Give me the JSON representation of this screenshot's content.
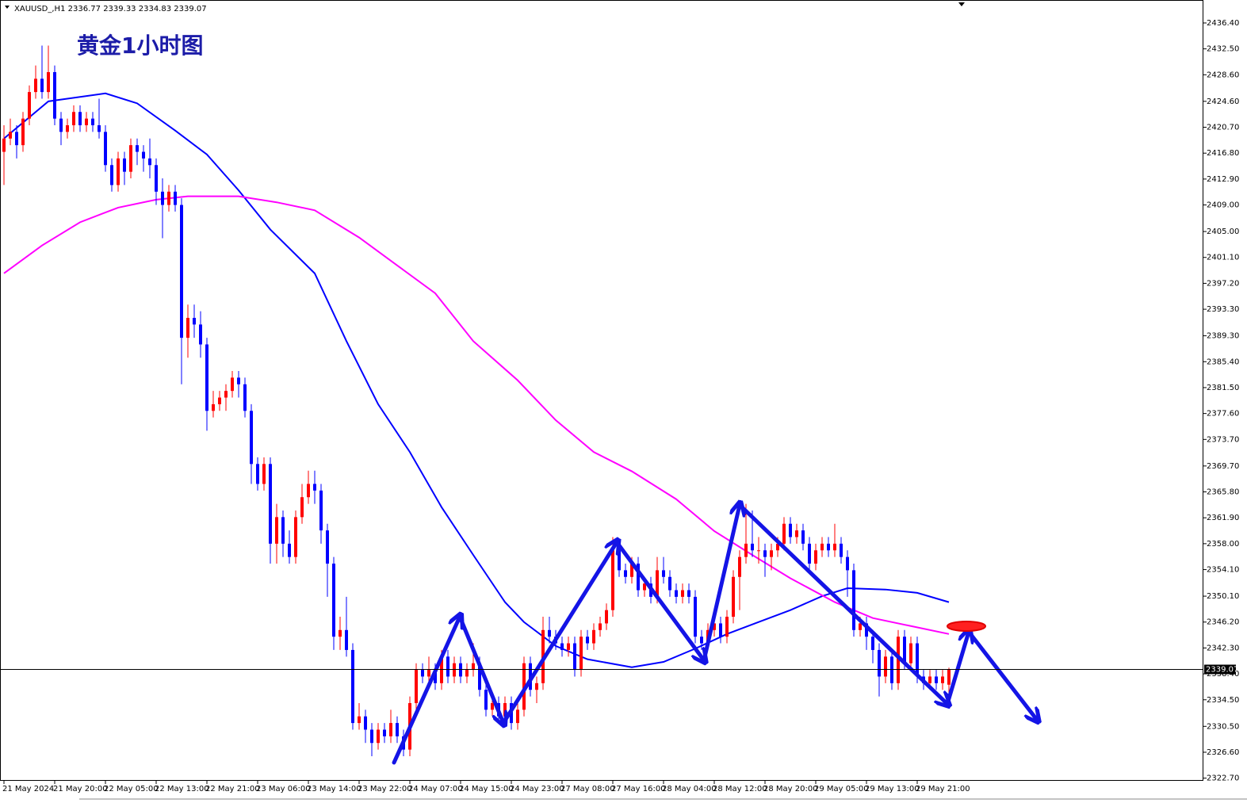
{
  "chart_data": {
    "type": "candlestick",
    "symbol": "XAUUSD_,H1",
    "title": "黄金1小时图",
    "bull_color": "#ff0000",
    "bear_color": "#0000ff",
    "price_line_color": "#000000",
    "ylim": [
      2322.3,
      2439.5
    ],
    "yticks": [
      {
        "value": 2436.4,
        "label": "2436.40"
      },
      {
        "value": 2432.5,
        "label": "2432.50"
      },
      {
        "value": 2428.6,
        "label": "2428.60"
      },
      {
        "value": 2424.6,
        "label": "2424.60"
      },
      {
        "value": 2420.7,
        "label": "2420.70"
      },
      {
        "value": 2416.8,
        "label": "2416.80"
      },
      {
        "value": 2412.9,
        "label": "2412.90"
      },
      {
        "value": 2409.0,
        "label": "2409.00"
      },
      {
        "value": 2405.0,
        "label": "2405.00"
      },
      {
        "value": 2401.1,
        "label": "2401.10"
      },
      {
        "value": 2397.2,
        "label": "2397.20"
      },
      {
        "value": 2393.3,
        "label": "2393.30"
      },
      {
        "value": 2389.3,
        "label": "2389.30"
      },
      {
        "value": 2385.4,
        "label": "2385.40"
      },
      {
        "value": 2381.5,
        "label": "2381.50"
      },
      {
        "value": 2377.6,
        "label": "2377.60"
      },
      {
        "value": 2373.7,
        "label": "2373.70"
      },
      {
        "value": 2369.7,
        "label": "2369.70"
      },
      {
        "value": 2365.8,
        "label": "2365.80"
      },
      {
        "value": 2361.9,
        "label": "2361.90"
      },
      {
        "value": 2358.0,
        "label": "2358.00"
      },
      {
        "value": 2354.1,
        "label": "2354.10"
      },
      {
        "value": 2350.1,
        "label": "2350.10"
      },
      {
        "value": 2346.2,
        "label": "2346.20"
      },
      {
        "value": 2342.3,
        "label": "2342.30"
      },
      {
        "value": 2338.4,
        "label": "2338.40"
      },
      {
        "value": 2334.5,
        "label": "2334.50"
      },
      {
        "value": 2330.5,
        "label": "2330.50"
      },
      {
        "value": 2326.6,
        "label": "2326.60"
      },
      {
        "value": 2322.7,
        "label": "2322.70"
      }
    ],
    "categories": [
      "21 May 2024",
      null,
      null,
      null,
      null,
      null,
      null,
      null,
      "21 May 20:00",
      null,
      null,
      null,
      null,
      null,
      null,
      null,
      "22 May 05:00",
      null,
      null,
      null,
      null,
      null,
      null,
      null,
      "22 May 13:00",
      null,
      null,
      null,
      null,
      null,
      null,
      null,
      "22 May 21:00",
      null,
      null,
      null,
      null,
      null,
      null,
      null,
      "23 May 06:00",
      null,
      null,
      null,
      null,
      null,
      null,
      null,
      "23 May 14:00",
      null,
      null,
      null,
      null,
      null,
      null,
      null,
      "23 May 22:00",
      null,
      null,
      null,
      null,
      null,
      null,
      null,
      "24 May 07:00",
      null,
      null,
      null,
      null,
      null,
      null,
      null,
      "24 May 15:00",
      null,
      null,
      null,
      null,
      null,
      null,
      null,
      "24 May 23:00",
      null,
      null,
      null,
      null,
      null,
      null,
      null,
      "27 May 08:00",
      null,
      null,
      null,
      null,
      null,
      null,
      null,
      "27 May 16:00",
      null,
      null,
      null,
      null,
      null,
      null,
      null,
      "28 May 04:00",
      null,
      null,
      null,
      null,
      null,
      null,
      null,
      "28 May 12:00",
      null,
      null,
      null,
      null,
      null,
      null,
      null,
      "28 May 20:00",
      null,
      null,
      null,
      null,
      null,
      null,
      null,
      "29 May 05:00",
      null,
      null,
      null,
      null,
      null,
      null,
      null,
      "29 May 13:00",
      null,
      null,
      null,
      null,
      null,
      null,
      null,
      "29 May 21:00",
      null,
      null,
      null,
      null,
      null
    ],
    "ohlc": [
      [
        2417,
        2421,
        2412,
        2419
      ],
      [
        2419,
        2422,
        2418,
        2420
      ],
      [
        2420,
        2421,
        2416,
        2418
      ],
      [
        2418,
        2423,
        2417,
        2422
      ],
      [
        2422,
        2427,
        2421,
        2426
      ],
      [
        2426,
        2430,
        2425,
        2428
      ],
      [
        2428,
        2433,
        2425,
        2426
      ],
      [
        2426,
        2433,
        2425,
        2429
      ],
      [
        2429,
        2430,
        2421,
        2422
      ],
      [
        2422,
        2423,
        2418,
        2420
      ],
      [
        2420,
        2422,
        2419,
        2421
      ],
      [
        2421,
        2424,
        2420,
        2423
      ],
      [
        2423,
        2424,
        2420,
        2421
      ],
      [
        2421,
        2423,
        2420,
        2422
      ],
      [
        2422,
        2423,
        2420,
        2421
      ],
      [
        2421,
        2425,
        2419,
        2420
      ],
      [
        2420,
        2421,
        2414,
        2415
      ],
      [
        2415,
        2416,
        2411,
        2412
      ],
      [
        2412,
        2417,
        2411,
        2416
      ],
      [
        2416,
        2417,
        2412,
        2414
      ],
      [
        2414,
        2419,
        2413,
        2418
      ],
      [
        2418,
        2419,
        2415,
        2417
      ],
      [
        2417,
        2418,
        2414,
        2416
      ],
      [
        2416,
        2419,
        2413,
        2415
      ],
      [
        2415,
        2416,
        2409,
        2411
      ],
      [
        2411,
        2413,
        2404,
        2409
      ],
      [
        2409,
        2412,
        2408,
        2411
      ],
      [
        2411,
        2412,
        2408,
        2409
      ],
      [
        2409,
        2410,
        2382,
        2389
      ],
      [
        2389,
        2394,
        2386,
        2392
      ],
      [
        2392,
        2394,
        2389,
        2391
      ],
      [
        2391,
        2393,
        2386,
        2388
      ],
      [
        2388,
        2389,
        2375,
        2378
      ],
      [
        2378,
        2381,
        2377,
        2379
      ],
      [
        2379,
        2381,
        2378,
        2380
      ],
      [
        2380,
        2382,
        2378,
        2381
      ],
      [
        2381,
        2384,
        2380,
        2383
      ],
      [
        2383,
        2384,
        2380,
        2382
      ],
      [
        2382,
        2383,
        2377,
        2378
      ],
      [
        2378,
        2379,
        2367,
        2370
      ],
      [
        2370,
        2371,
        2366,
        2367
      ],
      [
        2367,
        2371,
        2366,
        2370
      ],
      [
        2370,
        2371,
        2355,
        2358
      ],
      [
        2358,
        2364,
        2355,
        2362
      ],
      [
        2362,
        2363,
        2356,
        2358
      ],
      [
        2358,
        2360,
        2355,
        2356
      ],
      [
        2356,
        2363,
        2355,
        2362
      ],
      [
        2362,
        2367,
        2361,
        2365
      ],
      [
        2365,
        2369,
        2364,
        2367
      ],
      [
        2367,
        2369,
        2364,
        2366
      ],
      [
        2366,
        2367,
        2358,
        2360
      ],
      [
        2360,
        2361,
        2350,
        2355
      ],
      [
        2355,
        2356,
        2342,
        2344
      ],
      [
        2344,
        2347,
        2342,
        2345
      ],
      [
        2345,
        2350,
        2341,
        2342
      ],
      [
        2342,
        2343,
        2330,
        2331
      ],
      [
        2331,
        2334,
        2330,
        2332
      ],
      [
        2332,
        2333,
        2328,
        2330
      ],
      [
        2330,
        2331,
        2326,
        2328
      ],
      [
        2328,
        2331,
        2327,
        2330
      ],
      [
        2330,
        2331,
        2328,
        2329
      ],
      [
        2329,
        2333,
        2328,
        2331
      ],
      [
        2331,
        2332,
        2328,
        2329
      ],
      [
        2329,
        2330,
        2326,
        2327
      ],
      [
        2327,
        2335,
        2326,
        2334
      ],
      [
        2334,
        2340,
        2333,
        2339
      ],
      [
        2339,
        2340,
        2337,
        2338
      ],
      [
        2338,
        2341,
        2337,
        2339
      ],
      [
        2339,
        2340,
        2336,
        2337
      ],
      [
        2337,
        2342,
        2336,
        2341
      ],
      [
        2341,
        2342,
        2337,
        2338
      ],
      [
        2338,
        2341,
        2337,
        2340
      ],
      [
        2340,
        2341,
        2337,
        2338
      ],
      [
        2338,
        2340,
        2337,
        2339
      ],
      [
        2339,
        2343,
        2338,
        2340
      ],
      [
        2340,
        2341,
        2335,
        2336
      ],
      [
        2336,
        2337,
        2332,
        2333
      ],
      [
        2333,
        2335,
        2332,
        2334
      ],
      [
        2334,
        2335,
        2331,
        2332
      ],
      [
        2332,
        2335,
        2331,
        2334
      ],
      [
        2334,
        2335,
        2330,
        2331
      ],
      [
        2331,
        2334,
        2330,
        2333
      ],
      [
        2333,
        2341,
        2332,
        2340
      ],
      [
        2340,
        2341,
        2335,
        2336
      ],
      [
        2336,
        2338,
        2334,
        2337
      ],
      [
        2337,
        2347,
        2336,
        2345
      ],
      [
        2345,
        2347,
        2343,
        2344
      ],
      [
        2344,
        2345,
        2342,
        2343
      ],
      [
        2343,
        2344,
        2341,
        2342
      ],
      [
        2342,
        2344,
        2341,
        2343
      ],
      [
        2343,
        2344,
        2338,
        2339
      ],
      [
        2339,
        2345,
        2338,
        2344
      ],
      [
        2344,
        2345,
        2342,
        2343
      ],
      [
        2343,
        2346,
        2342,
        2345
      ],
      [
        2345,
        2347,
        2344,
        2346
      ],
      [
        2346,
        2349,
        2345,
        2348
      ],
      [
        2348,
        2359,
        2347,
        2357
      ],
      [
        2357,
        2358,
        2353,
        2354
      ],
      [
        2354,
        2355,
        2352,
        2353
      ],
      [
        2353,
        2356,
        2352,
        2355
      ],
      [
        2355,
        2356,
        2350,
        2351
      ],
      [
        2351,
        2353,
        2350,
        2352
      ],
      [
        2352,
        2353,
        2349,
        2350
      ],
      [
        2350,
        2356,
        2349,
        2354
      ],
      [
        2354,
        2356,
        2352,
        2353
      ],
      [
        2353,
        2354,
        2350,
        2351
      ],
      [
        2351,
        2352,
        2349,
        2350
      ],
      [
        2350,
        2352,
        2349,
        2351
      ],
      [
        2351,
        2352,
        2349,
        2350
      ],
      [
        2350,
        2351,
        2343,
        2344
      ],
      [
        2344,
        2345,
        2342,
        2343
      ],
      [
        2343,
        2346,
        2342,
        2345
      ],
      [
        2345,
        2347,
        2344,
        2346
      ],
      [
        2346,
        2347,
        2343,
        2344
      ],
      [
        2344,
        2348,
        2343,
        2347
      ],
      [
        2347,
        2354,
        2346,
        2353
      ],
      [
        2353,
        2357,
        2348,
        2356
      ],
      [
        2356,
        2364,
        2355,
        2358
      ],
      [
        2358,
        2363,
        2356,
        2357
      ],
      [
        2357,
        2359,
        2355,
        2357
      ],
      [
        2357,
        2358,
        2353,
        2356
      ],
      [
        2356,
        2358,
        2354,
        2357
      ],
      [
        2357,
        2359,
        2356,
        2358
      ],
      [
        2358,
        2362,
        2357,
        2361
      ],
      [
        2361,
        2362,
        2358,
        2359
      ],
      [
        2359,
        2361,
        2358,
        2360
      ],
      [
        2360,
        2361,
        2357,
        2358
      ],
      [
        2358,
        2359,
        2354,
        2355
      ],
      [
        2355,
        2358,
        2354,
        2357
      ],
      [
        2357,
        2359,
        2356,
        2358
      ],
      [
        2358,
        2359,
        2356,
        2357
      ],
      [
        2357,
        2361,
        2356,
        2358
      ],
      [
        2358,
        2359,
        2355,
        2356
      ],
      [
        2356,
        2357,
        2350,
        2354
      ],
      [
        2354,
        2355,
        2344,
        2345
      ],
      [
        2345,
        2347,
        2344,
        2346
      ],
      [
        2346,
        2347,
        2342,
        2344
      ],
      [
        2344,
        2345,
        2340,
        2342
      ],
      [
        2342,
        2343,
        2335,
        2338
      ],
      [
        2338,
        2342,
        2337,
        2341
      ],
      [
        2341,
        2342,
        2336,
        2337
      ],
      [
        2337,
        2345,
        2336,
        2344
      ],
      [
        2344,
        2345,
        2339,
        2340
      ],
      [
        2340,
        2344,
        2339,
        2343
      ],
      [
        2343,
        2344,
        2337,
        2338
      ],
      [
        2338,
        2339,
        2336,
        2337
      ],
      [
        2337,
        2339,
        2336,
        2338
      ],
      [
        2338,
        2339,
        2336,
        2337
      ],
      [
        2337,
        2339,
        2336,
        2338
      ],
      [
        2336.77,
        2339.33,
        2334.83,
        2339.07
      ]
    ],
    "moving_averages": [
      {
        "color": "#0000ff",
        "x": [
          0,
          7,
          16,
          21,
          27,
          32,
          37,
          42,
          49,
          54,
          59,
          64,
          69,
          74,
          79,
          82,
          87,
          92,
          99,
          104,
          109,
          114,
          119,
          124,
          129,
          133,
          139,
          144,
          149
        ],
        "values": [
          2419,
          2424.6,
          2425.8,
          2424.3,
          2420.2,
          2416.6,
          2411.2,
          2405.3,
          2398.7,
          2388.5,
          2379,
          2371.8,
          2363.5,
          2356.3,
          2349.2,
          2346.2,
          2342.6,
          2340.6,
          2339.4,
          2340.2,
          2342.2,
          2344.4,
          2346.2,
          2348,
          2350.1,
          2351.3,
          2351.1,
          2350.6,
          2349.2
        ]
      },
      {
        "color": "#ff00ff",
        "x": [
          0,
          6,
          12,
          18,
          24,
          29,
          37,
          43,
          49,
          56,
          62,
          68,
          74,
          81,
          87,
          93,
          99,
          106,
          112,
          118,
          124,
          131,
          137,
          143,
          149
        ],
        "values": [
          2398.7,
          2402.9,
          2406.4,
          2408.6,
          2409.8,
          2410.3,
          2410.3,
          2409.4,
          2408.2,
          2404.1,
          2399.9,
          2395.7,
          2388.5,
          2382.6,
          2376.6,
          2371.8,
          2368.9,
          2364.7,
          2359.9,
          2356.3,
          2352.8,
          2349.2,
          2346.8,
          2345.6,
          2344.4
        ]
      }
    ]
  }
}
